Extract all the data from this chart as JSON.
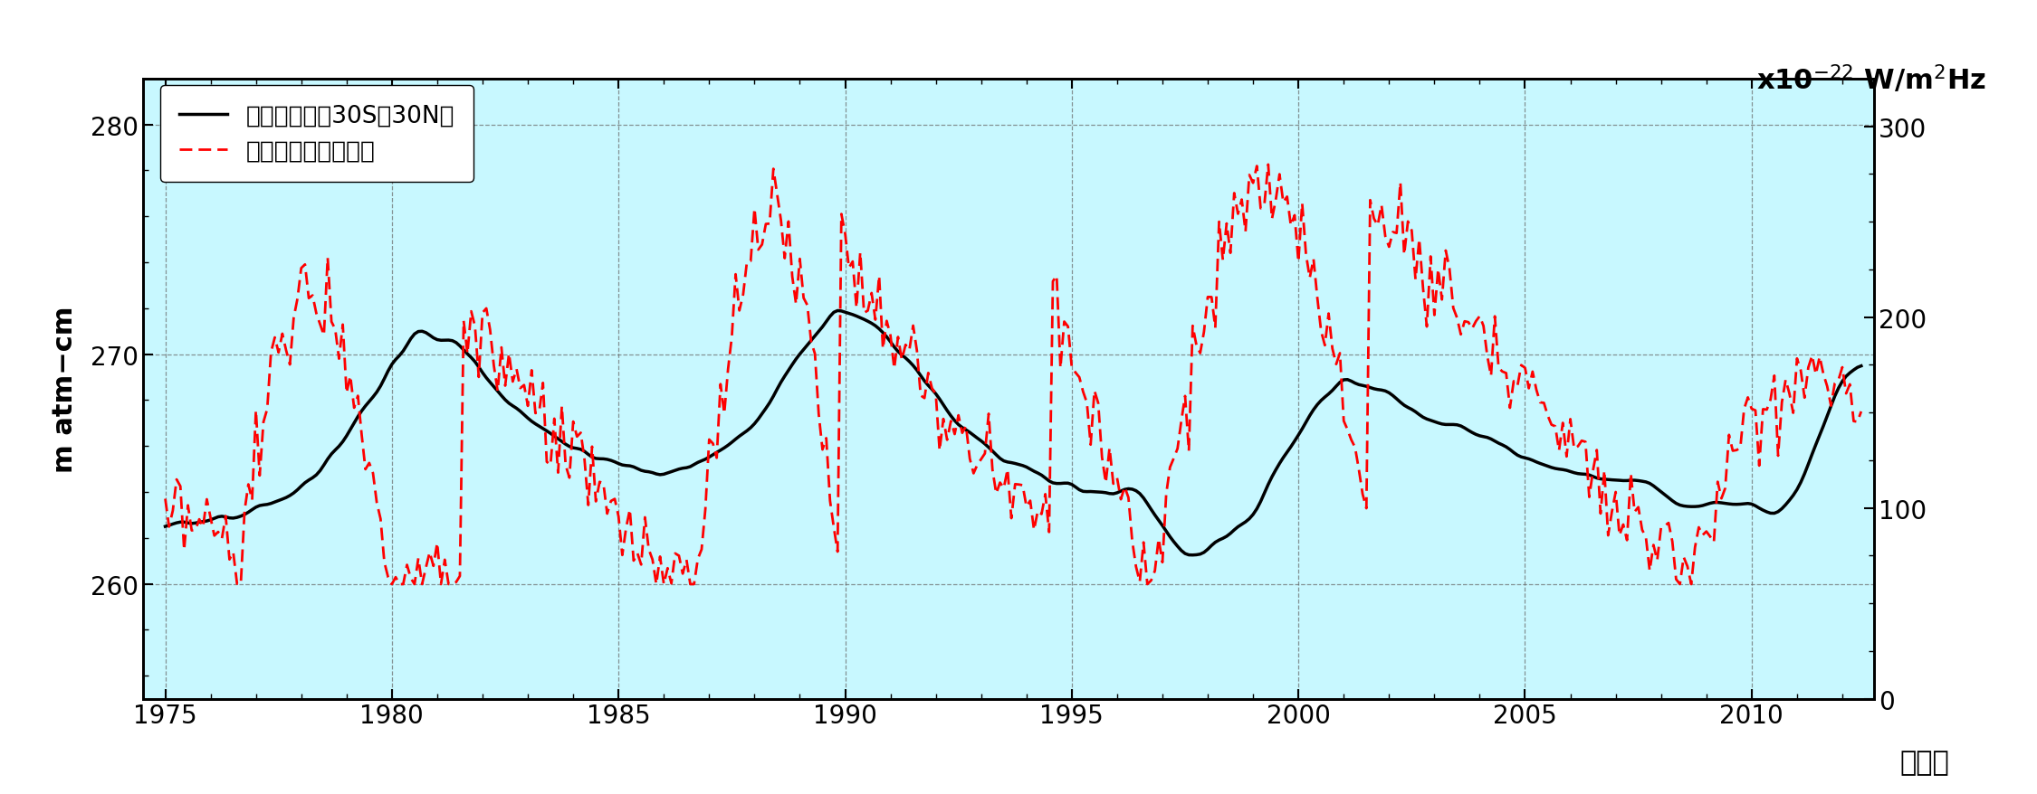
{
  "left_ylabel": "m atm−cm",
  "right_ylabel": "x10⁻²² W/m²Hz",
  "xlabel_text": "（年）",
  "legend_ozone": "オゾン全量（30S－30N）",
  "legend_flux": "太陽電波フラックス",
  "ozone_color": "#000000",
  "flux_color": "#ff0000",
  "background_color": "#c8f8ff",
  "left_ylim": [
    255,
    282
  ],
  "right_ylim": [
    0,
    325
  ],
  "left_yticks": [
    260,
    270,
    280
  ],
  "right_yticks": [
    0,
    100,
    200,
    300
  ],
  "xlim": [
    1974.5,
    2012.7
  ],
  "xticks": [
    1975,
    1980,
    1985,
    1990,
    1995,
    2000,
    2005,
    2010
  ],
  "grid_color": "#666666",
  "ozone_linewidth": 2.5,
  "flux_linewidth": 2.0,
  "fontsize_labels": 22,
  "fontsize_ticks": 20,
  "fontsize_legend": 19
}
